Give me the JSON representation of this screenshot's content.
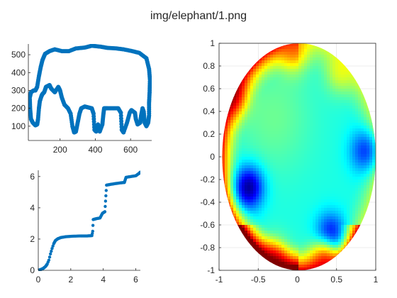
{
  "figure": {
    "title": "img/elephant/1.png"
  },
  "chart_data": [
    {
      "type": "scatter",
      "panel": "top-left",
      "title": "",
      "xlabel": "",
      "ylabel": "",
      "xlim": [
        20,
        720
      ],
      "ylim": [
        20,
        560
      ],
      "xticks": [
        200,
        400,
        600
      ],
      "yticks": [
        100,
        200,
        300,
        400,
        500
      ],
      "grid": false,
      "marker_color": "#0072bd",
      "series": [
        {
          "description": "elephant outline traced as dense points",
          "points": [
            [
              250,
              520
            ],
            [
              290,
              535
            ],
            [
              340,
              540
            ],
            [
              380,
              550
            ],
            [
              430,
              545
            ],
            [
              470,
              538
            ],
            [
              520,
              535
            ],
            [
              560,
              530
            ],
            [
              610,
              520
            ],
            [
              650,
              510
            ],
            [
              690,
              480
            ],
            [
              705,
              420
            ],
            [
              710,
              360
            ],
            [
              708,
              290
            ],
            [
              705,
              230
            ],
            [
              705,
              160
            ],
            [
              700,
              120
            ],
            [
              690,
              100
            ],
            [
              680,
              120
            ],
            [
              675,
              180
            ],
            [
              668,
              200
            ],
            [
              660,
              160
            ],
            [
              655,
              120
            ],
            [
              640,
              110
            ],
            [
              630,
              140
            ],
            [
              625,
              175
            ],
            [
              605,
              190
            ],
            [
              595,
              175
            ],
            [
              580,
              120
            ],
            [
              560,
              65
            ],
            [
              550,
              80
            ],
            [
              545,
              175
            ],
            [
              530,
              200
            ],
            [
              500,
              200
            ],
            [
              470,
              200
            ],
            [
              450,
              200
            ],
            [
              445,
              160
            ],
            [
              440,
              110
            ],
            [
              425,
              70
            ],
            [
              420,
              90
            ],
            [
              415,
              110
            ],
            [
              405,
              70
            ],
            [
              395,
              80
            ],
            [
              390,
              170
            ],
            [
              380,
              200
            ],
            [
              360,
              205
            ],
            [
              340,
              210
            ],
            [
              320,
              200
            ],
            [
              310,
              170
            ],
            [
              300,
              120
            ],
            [
              290,
              70
            ],
            [
              280,
              65
            ],
            [
              270,
              100
            ],
            [
              260,
              170
            ],
            [
              245,
              200
            ],
            [
              225,
              220
            ],
            [
              210,
              260
            ],
            [
              200,
              300
            ],
            [
              190,
              320
            ],
            [
              170,
              290
            ],
            [
              150,
              310
            ],
            [
              140,
              330
            ],
            [
              120,
              320
            ],
            [
              110,
              290
            ],
            [
              100,
              280
            ],
            [
              95,
              270
            ],
            [
              85,
              240
            ],
            [
              80,
              200
            ],
            [
              75,
              140
            ],
            [
              70,
              110
            ],
            [
              60,
              105
            ],
            [
              45,
              120
            ],
            [
              35,
              140
            ],
            [
              30,
              200
            ],
            [
              28,
              260
            ],
            [
              35,
              290
            ],
            [
              50,
              300
            ],
            [
              60,
              300
            ],
            [
              70,
              320
            ],
            [
              80,
              380
            ],
            [
              90,
              430
            ],
            [
              100,
              470
            ],
            [
              115,
              505
            ],
            [
              140,
              520
            ],
            [
              170,
              530
            ],
            [
              210,
              520
            ],
            [
              250,
              520
            ]
          ]
        }
      ]
    },
    {
      "type": "scatter",
      "panel": "bottom-left",
      "title": "",
      "xlabel": "",
      "ylabel": "",
      "xlim": [
        0,
        6.283
      ],
      "ylim": [
        0,
        6.4
      ],
      "xticks": [
        0,
        2,
        4,
        6
      ],
      "yticks": [
        0,
        2,
        4,
        6
      ],
      "grid": false,
      "marker_color": "#0072bd",
      "series": [
        {
          "description": "monotone staircase-like curve",
          "points": [
            [
              0.0,
              0.0
            ],
            [
              0.15,
              0.05
            ],
            [
              0.3,
              0.12
            ],
            [
              0.45,
              0.25
            ],
            [
              0.55,
              0.4
            ],
            [
              0.65,
              0.65
            ],
            [
              0.75,
              1.05
            ],
            [
              0.85,
              1.4
            ],
            [
              0.95,
              1.7
            ],
            [
              1.05,
              1.9
            ],
            [
              1.2,
              2.02
            ],
            [
              1.4,
              2.1
            ],
            [
              1.7,
              2.15
            ],
            [
              2.1,
              2.18
            ],
            [
              2.6,
              2.2
            ],
            [
              3.0,
              2.2
            ],
            [
              3.3,
              2.22
            ],
            [
              3.35,
              2.5
            ],
            [
              3.38,
              3.25
            ],
            [
              3.55,
              3.3
            ],
            [
              3.8,
              3.35
            ],
            [
              3.95,
              3.65
            ],
            [
              4.1,
              3.75
            ],
            [
              4.2,
              5.45
            ],
            [
              4.45,
              5.5
            ],
            [
              4.75,
              5.55
            ],
            [
              5.1,
              5.6
            ],
            [
              5.3,
              5.62
            ],
            [
              5.4,
              5.95
            ],
            [
              5.7,
              6.0
            ],
            [
              6.0,
              6.05
            ],
            [
              6.2,
              6.2
            ],
            [
              6.28,
              6.28
            ]
          ]
        }
      ]
    },
    {
      "type": "heatmap",
      "panel": "right",
      "title": "",
      "xlabel": "",
      "ylabel": "",
      "xlim": [
        -1,
        1
      ],
      "ylim": [
        -1,
        1
      ],
      "xticks": [
        -1,
        -0.5,
        0,
        0.5,
        1
      ],
      "yticks": [
        -1,
        -0.8,
        -0.6,
        -0.4,
        -0.2,
        0,
        0.2,
        0.4,
        0.6,
        0.8,
        1
      ],
      "grid": true,
      "colormap": "jet",
      "domain_shape": "ellipse",
      "ellipse": {
        "cx": 0.02,
        "cy": 0.0,
        "rx": 0.98,
        "ry": 1.0
      },
      "features": [
        {
          "kind": "low",
          "x": -0.62,
          "y": -0.27,
          "level": 0.0
        },
        {
          "kind": "low",
          "x": 0.42,
          "y": -0.7,
          "level": 0.05
        },
        {
          "kind": "low",
          "x": 0.85,
          "y": 0.05,
          "level": 0.18
        },
        {
          "kind": "high",
          "x": -0.85,
          "y": 0.55,
          "level": 1.0
        },
        {
          "kind": "high",
          "x": -0.3,
          "y": -0.95,
          "level": 1.0
        },
        {
          "kind": "high",
          "x": 0.35,
          "y": -0.92,
          "level": 0.95
        },
        {
          "kind": "high",
          "x": -0.05,
          "y": 0.95,
          "level": 0.8
        },
        {
          "kind": "high",
          "x": 0.55,
          "y": 0.75,
          "level": 0.65
        }
      ]
    }
  ]
}
